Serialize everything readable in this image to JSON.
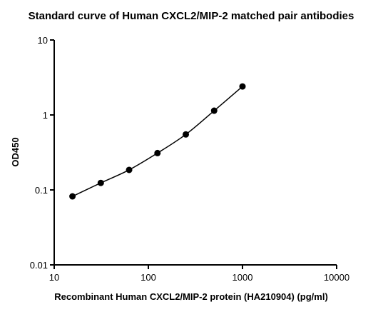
{
  "chart_data": {
    "type": "scatter",
    "title": "Standard curve of Human CXCL2/MIP-2 matched pair antibodies",
    "x_label": "Recombinant Human CXCL2/MIP-2 protein (HA210904) (pg/ml)",
    "y_label": "OD450",
    "x_scale": "log",
    "y_scale": "log",
    "x": [
      15.625,
      31.25,
      62.5,
      125,
      250,
      500,
      1000
    ],
    "values": [
      0.082,
      0.124,
      0.185,
      0.31,
      0.55,
      1.14,
      2.4
    ],
    "color": "#000000",
    "fit_line": true,
    "xlim": [
      10,
      10000
    ],
    "xticks": [
      10,
      100,
      1000,
      10000
    ],
    "ylim": [
      0.01,
      10
    ],
    "yticks": [
      0.01,
      0.1,
      1,
      10
    ]
  }
}
